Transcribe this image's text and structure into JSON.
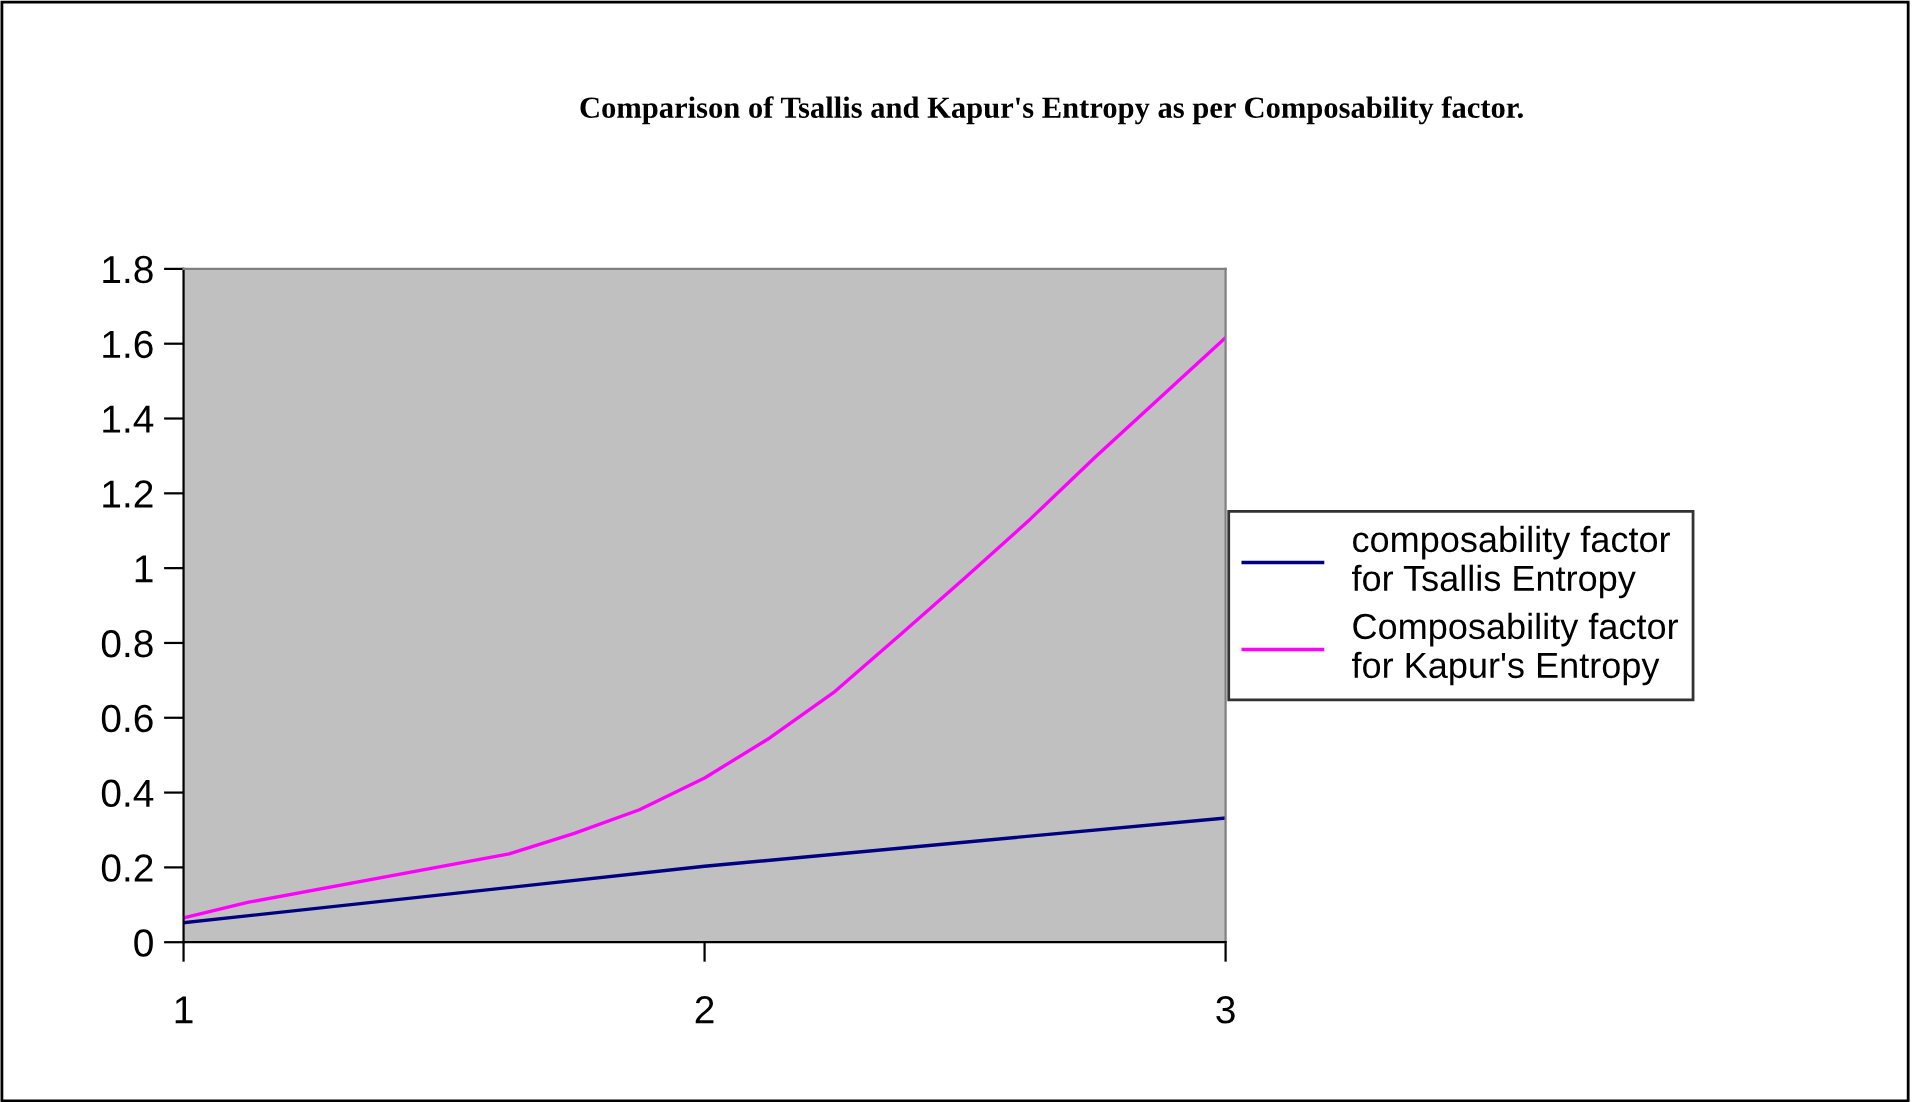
{
  "chart_data": {
    "type": "line",
    "title": "Comparison of Tsallis and Kapur's Entropy as per Composability factor.",
    "series": [
      {
        "name": "composability factor\nfor Tsallis Entropy",
        "color": "#000080",
        "x": [
          1,
          2,
          3
        ],
        "values": [
          0.052,
          0.203,
          0.332
        ]
      },
      {
        "name": "Composability factor\nfor Kapur's Entropy",
        "color": "#ff00ff",
        "x": [
          1,
          1.125,
          1.625,
          1.75,
          1.875,
          2,
          2.125,
          2.25,
          2.375,
          2.5,
          2.625,
          2.75,
          3
        ],
        "values": [
          0.065,
          0.107,
          0.236,
          0.291,
          0.354,
          0.439,
          0.546,
          0.67,
          0.821,
          0.974,
          1.131,
          1.297,
          1.616
        ]
      }
    ],
    "xlim": [
      1,
      3
    ],
    "xticks": [
      1,
      2,
      3
    ],
    "ylim": [
      0,
      1.8
    ],
    "yticks": [
      0,
      0.2,
      0.4,
      0.6,
      0.8,
      1,
      1.2,
      1.4,
      1.6,
      1.8
    ],
    "grid": false,
    "legend": "right",
    "marker": "none",
    "line_style": "solid"
  }
}
